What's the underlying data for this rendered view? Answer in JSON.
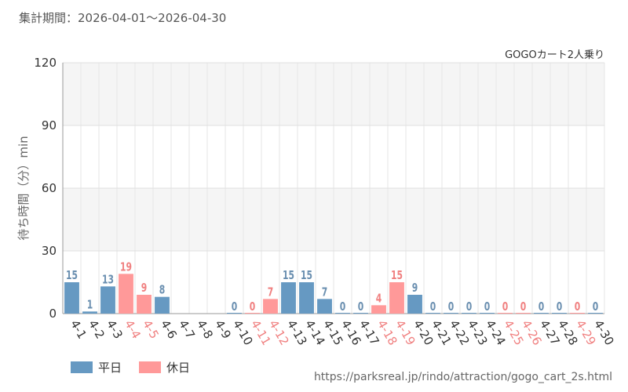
{
  "header": {
    "period_text": "集計期間：2026-04-01～2026-04-30"
  },
  "chart_data": {
    "type": "bar",
    "title": "GOGOカート2人乗り",
    "ylabel": "待ち時間（分）min",
    "xlabel": "",
    "ylim": [
      0,
      120
    ],
    "yticks": [
      0,
      30,
      60,
      90,
      120
    ],
    "grid": true,
    "legend_position": "bottom-left",
    "categories": [
      "4-1",
      "4-2",
      "4-3",
      "4-4",
      "4-5",
      "4-6",
      "4-7",
      "4-8",
      "4-9",
      "4-10",
      "4-11",
      "4-12",
      "4-13",
      "4-14",
      "4-15",
      "4-16",
      "4-17",
      "4-18",
      "4-19",
      "4-20",
      "4-21",
      "4-22",
      "4-23",
      "4-24",
      "4-25",
      "4-26",
      "4-27",
      "4-28",
      "4-29",
      "4-30"
    ],
    "values": [
      15,
      1,
      13,
      19,
      9,
      8,
      null,
      null,
      null,
      0,
      0,
      7,
      15,
      15,
      7,
      0,
      0,
      4,
      15,
      9,
      0,
      0,
      0,
      0,
      0,
      0,
      0,
      0,
      0,
      0
    ],
    "day_type": [
      "weekday",
      "weekday",
      "weekday",
      "holiday",
      "holiday",
      "weekday",
      "weekday",
      "weekday",
      "weekday",
      "weekday",
      "holiday",
      "holiday",
      "weekday",
      "weekday",
      "weekday",
      "weekday",
      "weekday",
      "holiday",
      "holiday",
      "weekday",
      "weekday",
      "weekday",
      "weekday",
      "weekday",
      "holiday",
      "holiday",
      "weekday",
      "weekday",
      "holiday",
      "weekday"
    ],
    "series": [
      {
        "name": "平日",
        "color": "#6699c2"
      },
      {
        "name": "休日",
        "color": "#ff9999"
      }
    ],
    "colors": {
      "weekday_label": "#6a8fb0",
      "holiday_label": "#f08080",
      "axis_text": "#333333"
    }
  },
  "footer": {
    "source_url": "https://parksreal.jp/rindo/attraction/gogo_cart_2s.html"
  }
}
